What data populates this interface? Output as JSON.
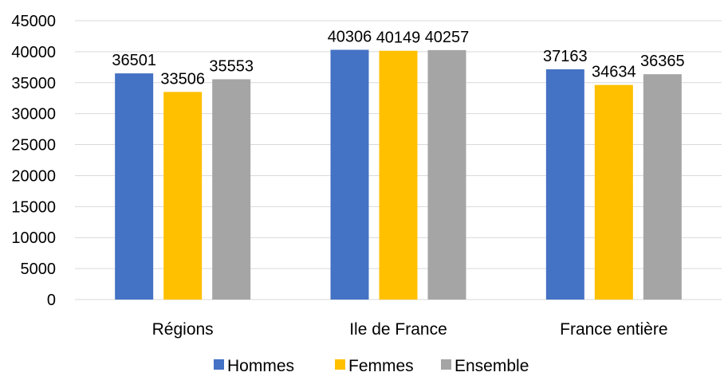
{
  "chart_data": {
    "type": "bar",
    "categories": [
      "Régions",
      "Ile de France",
      "France entière"
    ],
    "series": [
      {
        "name": "Hommes",
        "values": [
          36501,
          40306,
          37163
        ],
        "color": "#4472C4"
      },
      {
        "name": "Femmes",
        "values": [
          33506,
          40149,
          34634
        ],
        "color": "#FFC000"
      },
      {
        "name": "Ensemble",
        "values": [
          35553,
          40257,
          36365
        ],
        "color": "#A5A5A5"
      }
    ],
    "ylim": [
      0,
      45000
    ],
    "yticks": [
      0,
      5000,
      10000,
      15000,
      20000,
      25000,
      30000,
      35000,
      40000,
      45000
    ],
    "grid": true,
    "data_labels": true,
    "legend": "bottom",
    "gridline_color": "#D9D9D9"
  }
}
